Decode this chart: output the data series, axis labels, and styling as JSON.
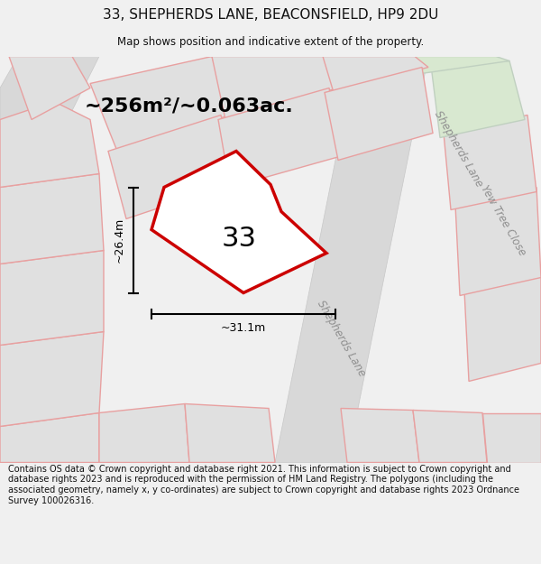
{
  "title_line1": "33, SHEPHERDS LANE, BEACONSFIELD, HP9 2DU",
  "title_line2": "Map shows position and indicative extent of the property.",
  "area_text": "~256m²/~0.063ac.",
  "label_33": "33",
  "dim_horizontal": "~31.1m",
  "dim_vertical": "~26.4m",
  "footer_text": "Contains OS data © Crown copyright and database right 2021. This information is subject to Crown copyright and database rights 2023 and is reproduced with the permission of HM Land Registry. The polygons (including the associated geometry, namely x, y co-ordinates) are subject to Crown copyright and database rights 2023 Ordnance Survey 100026316.",
  "bg_color": "#f0f0f0",
  "map_bg": "#e8e8e8",
  "plot_fill": "#ffffff",
  "plot_edge": "#cc0000",
  "neighbor_fill": "#e0e0e0",
  "neighbor_edge": "#e8a0a0",
  "road_color": "#d8d8d8",
  "green_fill": "#d8e8d0",
  "title_color": "#111111",
  "footer_color": "#111111"
}
